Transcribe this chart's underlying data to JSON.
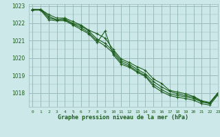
{
  "title": "Graphe pression niveau de la mer (hPa)",
  "xlabel": "Graphe pression niveau de la mer (hPa)",
  "background_color": "#cce8e8",
  "grid_color": "#99bbbb",
  "line_color": "#1a5c1a",
  "marker_color": "#1a5c1a",
  "ylim": [
    1017.2,
    1023.1
  ],
  "xlim": [
    -0.5,
    23
  ],
  "yticks": [
    1018,
    1019,
    1020,
    1021,
    1022,
    1023
  ],
  "xticks": [
    0,
    1,
    2,
    3,
    4,
    5,
    6,
    7,
    8,
    9,
    10,
    11,
    12,
    13,
    14,
    15,
    16,
    17,
    18,
    19,
    20,
    21,
    22,
    23
  ],
  "series": [
    [
      1022.8,
      1022.8,
      1022.5,
      1022.3,
      1022.3,
      1022.1,
      1021.9,
      1021.6,
      1021.4,
      1021.15,
      1020.5,
      1019.95,
      1019.75,
      1019.5,
      1019.3,
      1018.8,
      1018.55,
      1018.15,
      1018.05,
      1017.95,
      1017.8,
      1017.55,
      1017.45,
      1018.0
    ],
    [
      1022.8,
      1022.8,
      1022.4,
      1022.2,
      1022.25,
      1022.0,
      1021.85,
      1021.55,
      1021.1,
      1020.85,
      1020.4,
      1019.85,
      1019.65,
      1019.35,
      1019.1,
      1018.65,
      1018.35,
      1018.1,
      1017.95,
      1017.85,
      1017.75,
      1017.5,
      1017.42,
      1018.0
    ],
    [
      1022.8,
      1022.8,
      1022.3,
      1022.2,
      1022.2,
      1021.95,
      1021.75,
      1021.45,
      1021.0,
      1020.7,
      1020.3,
      1019.75,
      1019.55,
      1019.25,
      1019.0,
      1018.5,
      1018.2,
      1017.95,
      1017.85,
      1017.78,
      1017.68,
      1017.48,
      1017.38,
      1017.95
    ],
    [
      1022.75,
      1022.75,
      1022.2,
      1022.15,
      1022.15,
      1021.9,
      1021.65,
      1021.38,
      1020.9,
      1021.55,
      1020.2,
      1019.65,
      1019.48,
      1019.18,
      1018.95,
      1018.38,
      1018.08,
      1017.85,
      1017.75,
      1017.68,
      1017.58,
      1017.38,
      1017.3,
      1017.88
    ]
  ]
}
